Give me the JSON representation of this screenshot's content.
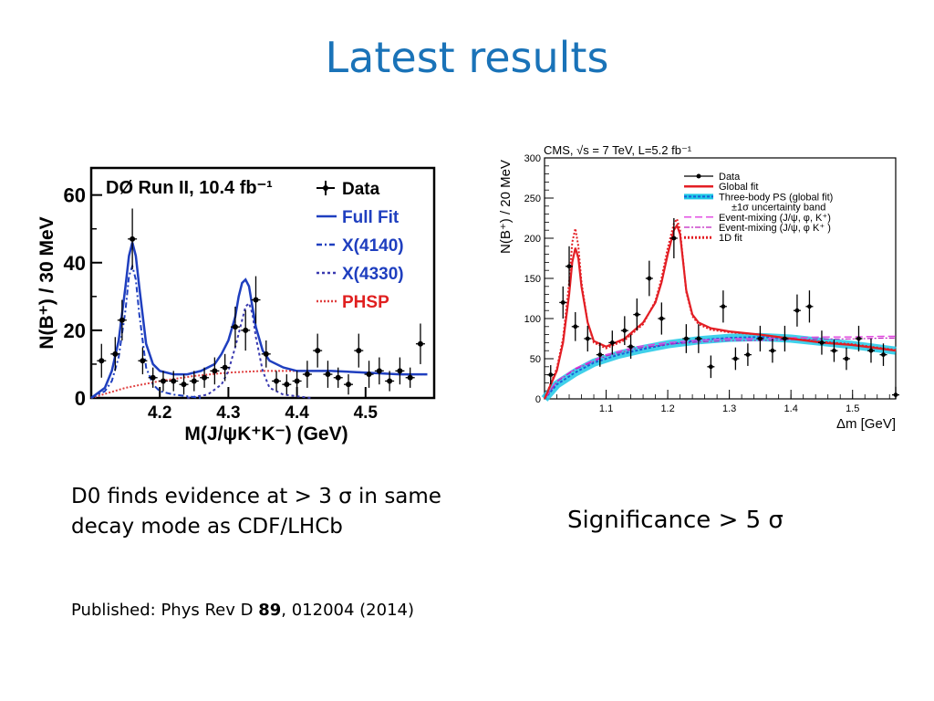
{
  "slide": {
    "title": "Latest results",
    "caption_left": "D0 finds evidence at > 3 σ in same decay mode as CDF/LHCb",
    "caption_right": "Significance > 5 σ",
    "published_prefix": "Published: Phys Rev D ",
    "published_volume": "89",
    "published_suffix": ", 012004 (2014)"
  },
  "chart_data": [
    {
      "type": "line",
      "title": "DØ Run II, 10.4 fb⁻¹",
      "xlabel": "M(J/ψK⁺K⁻) (GeV)",
      "ylabel": "N(B⁺) / 30 MeV",
      "xlim": [
        4.1,
        4.6
      ],
      "ylim": [
        0,
        68
      ],
      "x_ticks": [
        4.2,
        4.3,
        4.4,
        4.5
      ],
      "y_ticks": [
        0,
        20,
        40,
        60
      ],
      "legend_position": "top-right",
      "colors": {
        "data": "#000000",
        "full_fit": "#1f3fbf",
        "x4140": "#1f3fbf",
        "x4330": "#3a3ab0",
        "phsp": "#e04040",
        "phsp_label": "#e02020"
      },
      "series": [
        {
          "name": "Data",
          "kind": "points",
          "x": [
            4.115,
            4.135,
            4.145,
            4.16,
            4.175,
            4.19,
            4.205,
            4.22,
            4.235,
            4.25,
            4.265,
            4.28,
            4.295,
            4.31,
            4.325,
            4.34,
            4.355,
            4.37,
            4.385,
            4.4,
            4.415,
            4.43,
            4.445,
            4.46,
            4.475,
            4.49,
            4.505,
            4.52,
            4.535,
            4.55,
            4.565,
            4.58
          ],
          "y": [
            11,
            13,
            23,
            47,
            11,
            6,
            5,
            5,
            4,
            5,
            6,
            8,
            9,
            21,
            20,
            29,
            13,
            5,
            4,
            5,
            7,
            14,
            7,
            6,
            4,
            14,
            7,
            8,
            5,
            8,
            6,
            16
          ],
          "err": [
            5,
            5,
            6,
            9,
            4,
            3,
            3,
            3,
            3,
            3,
            3,
            4,
            4,
            6,
            6,
            7,
            4,
            3,
            3,
            3,
            4,
            5,
            4,
            3,
            3,
            5,
            4,
            4,
            3,
            4,
            3,
            6
          ]
        },
        {
          "name": "Full Fit",
          "kind": "line",
          "x": [
            4.1,
            4.12,
            4.13,
            4.14,
            4.15,
            4.155,
            4.16,
            4.165,
            4.17,
            4.18,
            4.19,
            4.2,
            4.22,
            4.24,
            4.26,
            4.28,
            4.29,
            4.3,
            4.31,
            4.315,
            4.32,
            4.325,
            4.33,
            4.335,
            4.34,
            4.35,
            4.36,
            4.38,
            4.4,
            4.45,
            4.5,
            4.55,
            4.59
          ],
          "y": [
            0,
            3,
            8,
            17,
            33,
            42,
            46,
            42,
            33,
            16,
            10,
            8,
            7,
            7,
            8,
            10,
            13,
            17,
            24,
            30,
            34,
            35,
            33,
            27,
            21,
            14,
            11,
            9,
            8,
            8,
            7.5,
            7,
            7
          ]
        },
        {
          "name": "X(4140)",
          "kind": "line",
          "x": [
            4.1,
            4.12,
            4.13,
            4.14,
            4.15,
            4.155,
            4.16,
            4.165,
            4.17,
            4.18,
            4.19,
            4.2,
            4.22,
            4.26
          ],
          "y": [
            0,
            2,
            5,
            12,
            26,
            36,
            39,
            35,
            25,
            9,
            4,
            2,
            1,
            0
          ]
        },
        {
          "name": "X(4330)",
          "kind": "line",
          "x": [
            4.24,
            4.27,
            4.29,
            4.3,
            4.31,
            4.32,
            4.325,
            4.33,
            4.335,
            4.34,
            4.35,
            4.36,
            4.38,
            4.42
          ],
          "y": [
            0,
            1,
            4,
            8,
            15,
            23,
            27,
            28,
            25,
            18,
            8,
            3,
            1,
            0
          ]
        },
        {
          "name": "PHSP",
          "kind": "line",
          "x": [
            4.1,
            4.15,
            4.2,
            4.25,
            4.3,
            4.35,
            4.4,
            4.45,
            4.5,
            4.55,
            4.59
          ],
          "y": [
            0,
            3,
            5,
            6.5,
            7.5,
            8,
            8,
            8,
            7.5,
            7,
            7
          ]
        }
      ]
    },
    {
      "type": "line",
      "title": "CMS, √s = 7 TeV, L=5.2 fb⁻¹",
      "xlabel": "Δm [GeV]",
      "ylabel": "N(B⁺) / 20 MeV",
      "xlim": [
        1.0,
        1.57
      ],
      "ylim": [
        0,
        300
      ],
      "x_ticks": [
        1.1,
        1.2,
        1.3,
        1.4,
        1.5
      ],
      "y_ticks": [
        0,
        50,
        100,
        150,
        200,
        250,
        300
      ],
      "legend_position": "top-right",
      "colors": {
        "data": "#000000",
        "global_fit": "#e31e24",
        "band": "#1ec8e6",
        "three_body": "#1a5fd6",
        "mix1": "#e040e0",
        "mix2": "#c020c0",
        "fit1d": "#e31e24"
      },
      "legend": [
        "Data",
        "Global fit",
        "Three-body PS (global fit)",
        "±1σ  uncertainty band",
        "Event-mixing (J/ψ, φ, K⁺)",
        "Event-mixing (J/ψ, φ K⁺ )",
        "1D fit"
      ],
      "series": [
        {
          "name": "Data",
          "kind": "points",
          "x": [
            1.01,
            1.03,
            1.04,
            1.05,
            1.07,
            1.09,
            1.11,
            1.13,
            1.14,
            1.15,
            1.17,
            1.19,
            1.21,
            1.23,
            1.25,
            1.27,
            1.29,
            1.31,
            1.33,
            1.35,
            1.37,
            1.39,
            1.41,
            1.43,
            1.45,
            1.47,
            1.49,
            1.51,
            1.53,
            1.55,
            1.57
          ],
          "y": [
            30,
            120,
            165,
            90,
            75,
            55,
            70,
            85,
            65,
            105,
            150,
            100,
            200,
            75,
            75,
            40,
            115,
            50,
            55,
            75,
            60,
            75,
            110,
            115,
            70,
            60,
            50,
            75,
            60,
            55,
            5
          ],
          "err": [
            12,
            20,
            25,
            18,
            16,
            15,
            15,
            18,
            15,
            20,
            22,
            20,
            25,
            18,
            18,
            14,
            20,
            14,
            14,
            16,
            15,
            16,
            20,
            20,
            15,
            14,
            14,
            16,
            15,
            14,
            10
          ]
        },
        {
          "name": "Global fit",
          "kind": "line",
          "x": [
            1.0,
            1.02,
            1.03,
            1.04,
            1.045,
            1.05,
            1.055,
            1.06,
            1.07,
            1.08,
            1.1,
            1.13,
            1.16,
            1.18,
            1.19,
            1.2,
            1.21,
            1.215,
            1.22,
            1.225,
            1.23,
            1.24,
            1.25,
            1.27,
            1.3,
            1.35,
            1.4,
            1.45,
            1.5,
            1.55,
            1.57
          ],
          "y": [
            0,
            35,
            70,
            130,
            170,
            188,
            175,
            140,
            95,
            72,
            65,
            75,
            95,
            120,
            145,
            180,
            210,
            216,
            205,
            170,
            135,
            105,
            95,
            88,
            84,
            80,
            75,
            70,
            67,
            62,
            60
          ]
        },
        {
          "name": "Three-body PS (global fit)",
          "kind": "line",
          "x": [
            1.0,
            1.02,
            1.05,
            1.08,
            1.12,
            1.16,
            1.2,
            1.25,
            1.3,
            1.35,
            1.4,
            1.45,
            1.5,
            1.55,
            1.57
          ],
          "y": [
            0,
            18,
            33,
            45,
            55,
            62,
            68,
            73,
            76,
            77,
            75,
            71,
            67,
            62,
            60
          ]
        },
        {
          "name": "Event-mixing (J/ψ, φ, K⁺)",
          "kind": "line",
          "x": [
            1.0,
            1.02,
            1.05,
            1.1,
            1.15,
            1.2,
            1.25,
            1.3,
            1.35,
            1.4,
            1.45,
            1.5,
            1.55,
            1.57
          ],
          "y": [
            0,
            22,
            38,
            55,
            65,
            70,
            73,
            75,
            75,
            76,
            77,
            77,
            78,
            78
          ]
        },
        {
          "name": "1D fit",
          "kind": "line",
          "x": [
            1.0,
            1.02,
            1.03,
            1.04,
            1.045,
            1.05,
            1.055,
            1.06,
            1.07,
            1.08,
            1.1,
            1.13,
            1.16,
            1.18,
            1.19,
            1.2,
            1.21,
            1.215,
            1.22,
            1.225,
            1.23,
            1.24,
            1.25,
            1.27,
            1.3,
            1.35,
            1.4,
            1.45,
            1.5,
            1.55,
            1.57
          ],
          "y": [
            0,
            38,
            75,
            145,
            195,
            212,
            190,
            145,
            95,
            70,
            63,
            73,
            93,
            122,
            150,
            188,
            218,
            224,
            210,
            172,
            133,
            103,
            93,
            86,
            83,
            80,
            75,
            71,
            68,
            63,
            61
          ]
        }
      ]
    }
  ]
}
